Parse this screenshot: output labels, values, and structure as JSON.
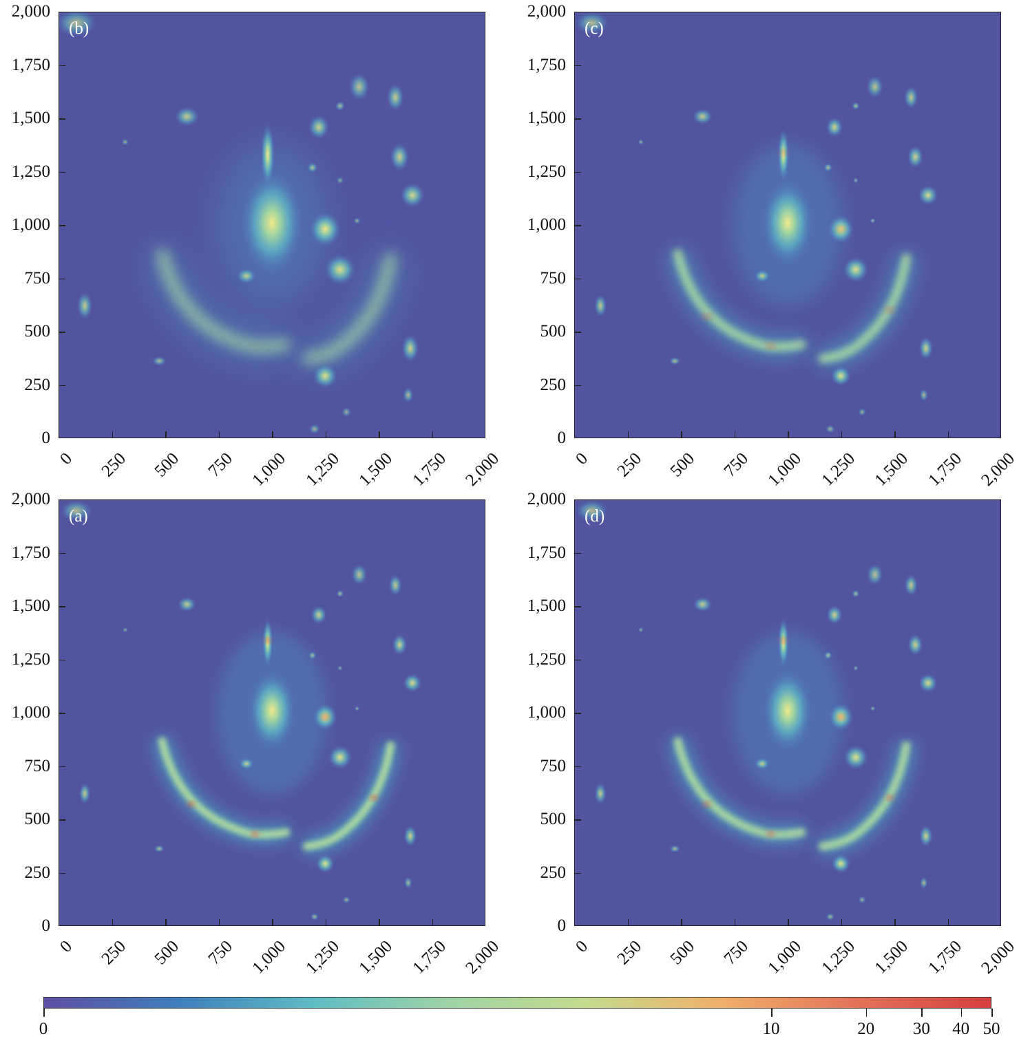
{
  "chart_data": {
    "type": "heatmap",
    "panels": [
      {
        "label": "(b)",
        "position": "top-left",
        "blur": 2.2
      },
      {
        "label": "(c)",
        "position": "top-right",
        "blur": 1.2
      },
      {
        "label": "(a)",
        "position": "bottom-left",
        "blur": 0.9
      },
      {
        "label": "(d)",
        "position": "bottom-right",
        "blur": 1.0
      }
    ],
    "xlim": [
      0,
      2000
    ],
    "ylim": [
      0,
      2000
    ],
    "x_ticks": [
      "0",
      "250",
      "500",
      "750",
      "1,000",
      "1,250",
      "1,500",
      "1,750",
      "2,000"
    ],
    "y_ticks": [
      "0",
      "250",
      "500",
      "750",
      "1,000",
      "1,250",
      "1,500",
      "1,750",
      "2,000"
    ],
    "tick_values": [
      0,
      250,
      500,
      750,
      1000,
      1250,
      1500,
      1750,
      2000
    ],
    "colorbar": {
      "range": [
        0,
        50
      ],
      "scale": "log-stretch",
      "ticks": [
        0,
        10,
        20,
        30,
        40,
        50
      ],
      "tick_labels": [
        "0",
        "10",
        "20",
        "30",
        "40",
        "50"
      ],
      "colors": [
        "#5e4fa2",
        "#3f7fbd",
        "#5fbdc4",
        "#9fd3a5",
        "#c4dc8e",
        "#f0b06a",
        "#e3735a",
        "#d53e3f"
      ]
    },
    "sources": [
      [
        1000,
        1010,
        90,
        150,
        0.85
      ],
      [
        980,
        1330,
        20,
        90,
        0.8
      ],
      [
        1250,
        980,
        45,
        50,
        0.8
      ],
      [
        1320,
        790,
        45,
        45,
        0.7
      ],
      [
        1220,
        1460,
        30,
        35,
        0.6
      ],
      [
        1580,
        1600,
        25,
        40,
        0.55
      ],
      [
        1600,
        1320,
        28,
        40,
        0.6
      ],
      [
        1660,
        1140,
        35,
        35,
        0.65
      ],
      [
        1650,
        420,
        25,
        40,
        0.6
      ],
      [
        1250,
        290,
        35,
        35,
        0.7
      ],
      [
        120,
        620,
        22,
        40,
        0.55
      ],
      [
        600,
        1510,
        35,
        28,
        0.55
      ],
      [
        880,
        760,
        28,
        22,
        0.55
      ],
      [
        1190,
        1270,
        15,
        15,
        0.45
      ],
      [
        1320,
        1560,
        14,
        14,
        0.45
      ],
      [
        1640,
        200,
        15,
        22,
        0.45
      ],
      [
        470,
        360,
        20,
        14,
        0.45
      ],
      [
        1200,
        40,
        16,
        14,
        0.4
      ],
      [
        80,
        1950,
        60,
        40,
        0.45
      ],
      [
        1350,
        120,
        14,
        14,
        0.35
      ],
      [
        1400,
        1020,
        10,
        10,
        0.35
      ],
      [
        1320,
        1210,
        10,
        10,
        0.35
      ],
      [
        310,
        1390,
        10,
        10,
        0.35
      ],
      [
        1410,
        1650,
        30,
        40,
        0.5
      ]
    ]
  }
}
